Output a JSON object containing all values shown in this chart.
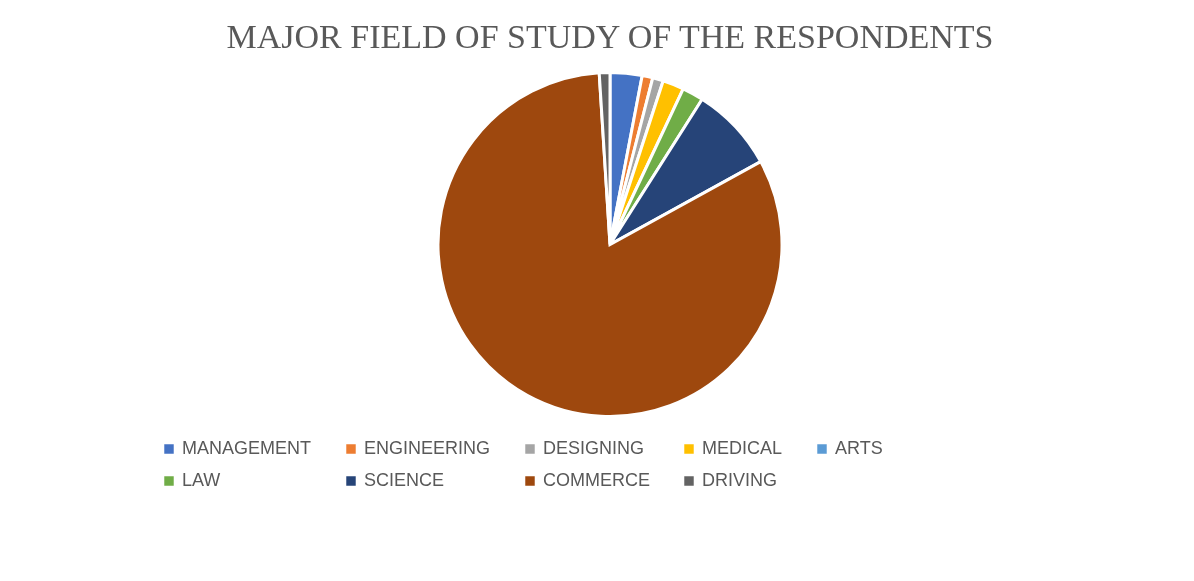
{
  "chart_data": {
    "type": "pie",
    "title": "MAJOR FIELD OF STUDY OF THE RESPONDENTS",
    "categories": [
      "MANAGEMENT",
      "ENGINEERING",
      "DESIGNING",
      "MEDICAL",
      "ARTS",
      "LAW",
      "SCIENCE",
      "COMMERCE",
      "DRIVING"
    ],
    "values": [
      3,
      1,
      1,
      2,
      0,
      2,
      8,
      82,
      1
    ],
    "colors": [
      "#4472c4",
      "#ed7d31",
      "#a5a5a5",
      "#ffc000",
      "#5b9bd5",
      "#70ad47",
      "#264478",
      "#9e480e",
      "#636363"
    ],
    "legend": "bottom"
  }
}
